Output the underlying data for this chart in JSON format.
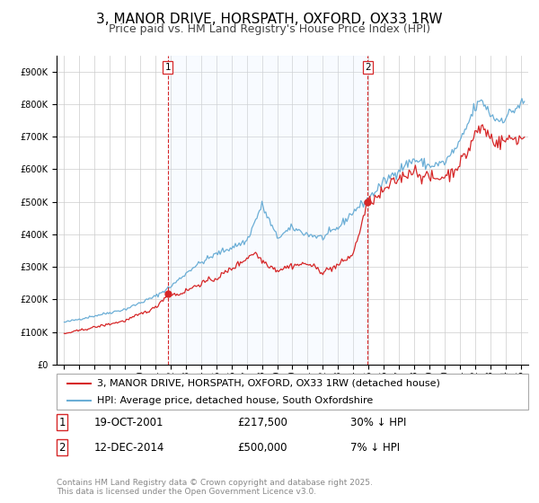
{
  "title": "3, MANOR DRIVE, HORSPATH, OXFORD, OX33 1RW",
  "subtitle": "Price paid vs. HM Land Registry's House Price Index (HPI)",
  "legend_line1": "3, MANOR DRIVE, HORSPATH, OXFORD, OX33 1RW (detached house)",
  "legend_line2": "HPI: Average price, detached house, South Oxfordshire",
  "footnote1": "Contains HM Land Registry data © Crown copyright and database right 2025.",
  "footnote2": "This data is licensed under the Open Government Licence v3.0.",
  "sale1_label": "1",
  "sale1_date": "19-OCT-2001",
  "sale1_price": "£217,500",
  "sale1_hpi": "30% ↓ HPI",
  "sale2_label": "2",
  "sale2_date": "12-DEC-2014",
  "sale2_price": "£500,000",
  "sale2_hpi": "7% ↓ HPI",
  "sale1_date_num": 2001.8,
  "sale2_date_num": 2014.95,
  "sale1_price_val": 217500,
  "sale2_price_val": 500000,
  "hpi_color": "#6baed6",
  "price_color": "#d62728",
  "vline_color": "#d62728",
  "highlight_color": "#ddeeff",
  "grid_color": "#cccccc",
  "background_color": "#ffffff",
  "ylim": [
    0,
    950000
  ],
  "xlim_start": 1994.5,
  "xlim_end": 2025.5,
  "title_fontsize": 11,
  "subtitle_fontsize": 9,
  "tick_fontsize": 7,
  "legend_fontsize": 8,
  "footnote_fontsize": 6.5,
  "table_fontsize": 8.5
}
